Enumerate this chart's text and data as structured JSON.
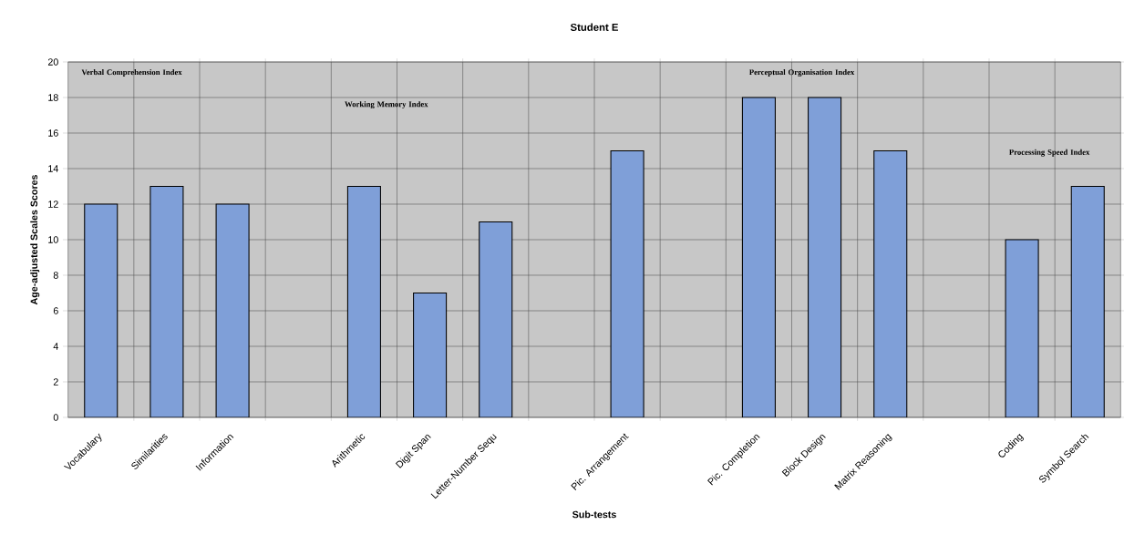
{
  "chart_data": {
    "type": "bar",
    "title": "Student E",
    "xlabel": "Sub-tests",
    "ylabel": "Age-adjusted Scales Scores",
    "categories": [
      "Vocabulary",
      "Similarities",
      "Information",
      null,
      "Arithmetic",
      "Digit Span",
      "Letter-Number Sequ",
      null,
      "Pic. Arrangement",
      null,
      "Pic. Completion",
      "Block Design",
      "Matrix Reasoning",
      null,
      "Coding",
      "Symbol Search"
    ],
    "values": [
      12,
      13,
      12,
      null,
      13,
      7,
      11,
      null,
      15,
      null,
      18,
      18,
      15,
      null,
      10,
      13
    ],
    "color": "#7f9fd8",
    "ylim": [
      0,
      20
    ],
    "yticks": [
      0,
      2,
      4,
      6,
      8,
      10,
      12,
      14,
      16,
      18,
      20
    ],
    "grid": true,
    "annotations": [
      "Verbal Comprehension Index",
      "Working Memory Index",
      "Perceptual Organisation Index",
      "Processing Speed Index"
    ]
  }
}
